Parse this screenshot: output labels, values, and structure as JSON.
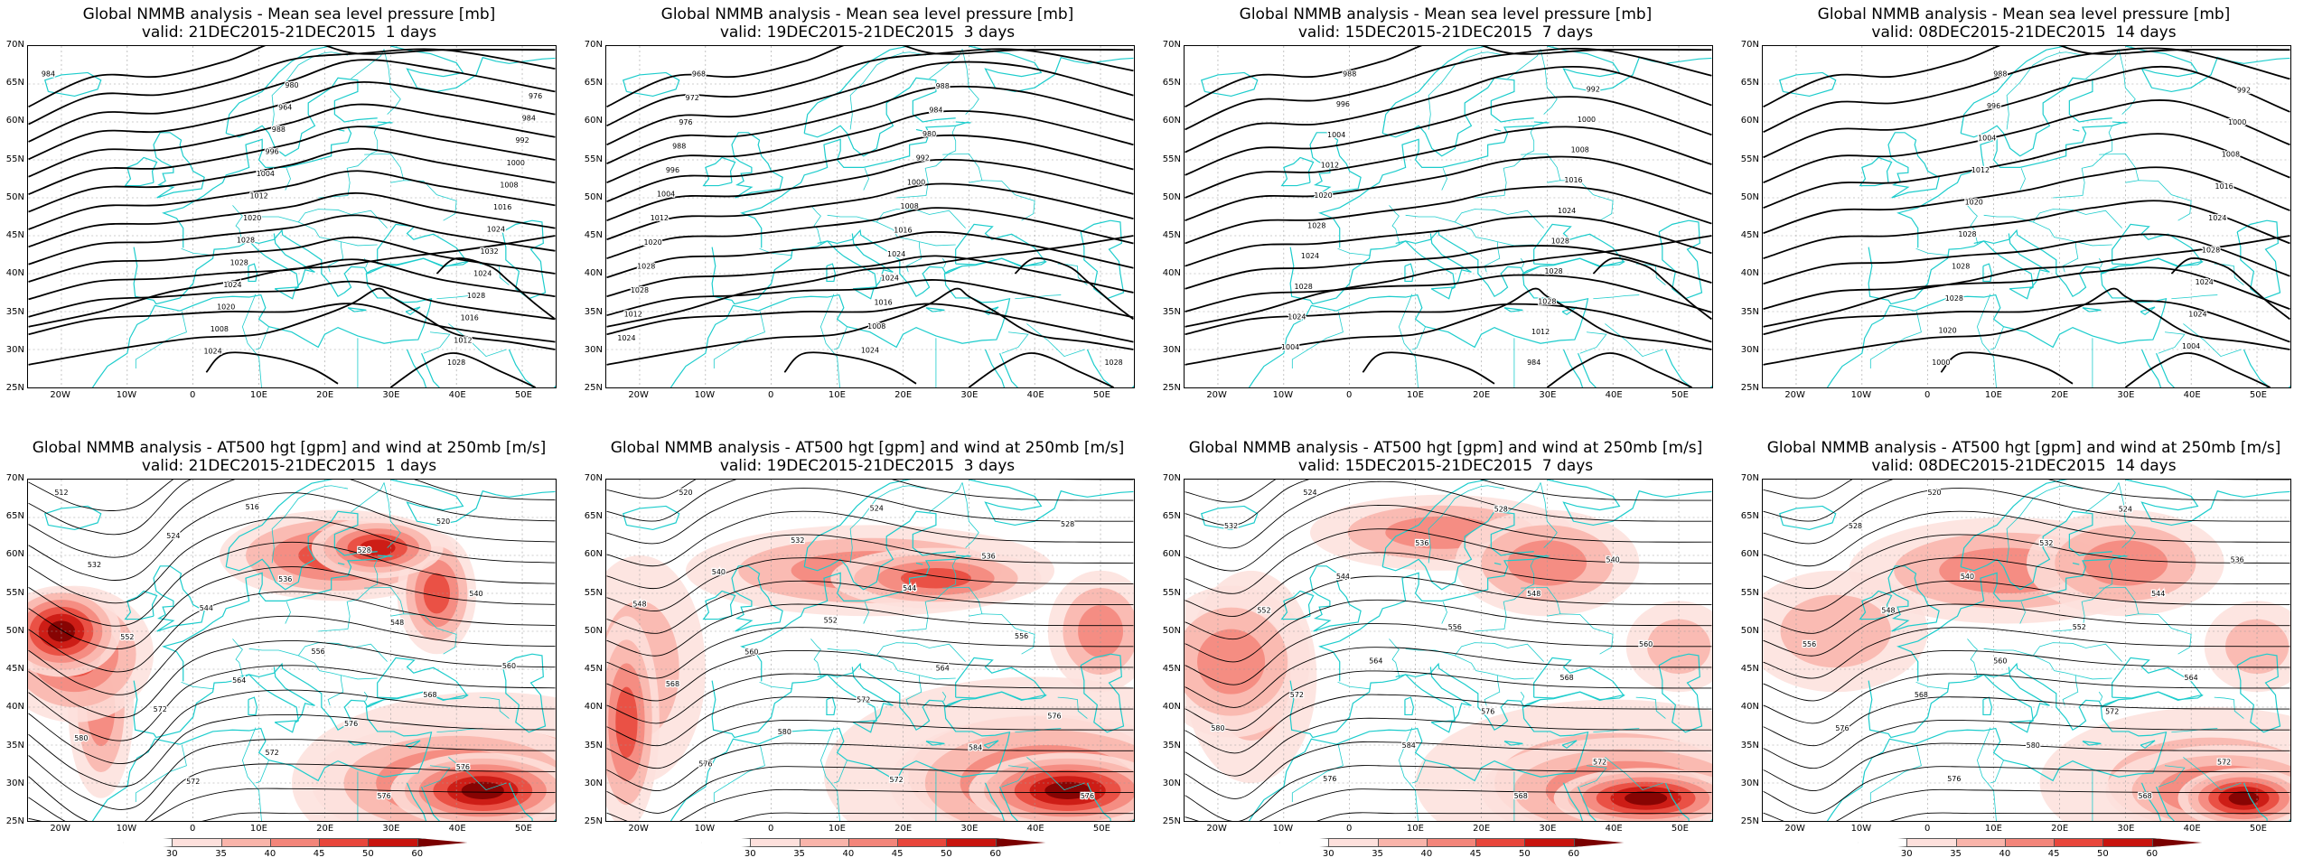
{
  "panels": [
    {
      "row": 0,
      "col": 0,
      "title1": "Global NMMB analysis - Mean sea level pressure [mb]",
      "title2": "valid: 21DEC2015-21DEC2015  1 days",
      "field": "mslp",
      "labels": [
        "984",
        "980",
        "976",
        "964",
        "984",
        "988",
        "992",
        "996",
        "1000",
        "1004",
        "1008",
        "1012",
        "1016",
        "1020",
        "1024",
        "1028",
        "1032",
        "1028",
        "1024",
        "1024",
        "1028",
        "1020",
        "1016",
        "1008",
        "1012",
        "1024",
        "1028"
      ]
    },
    {
      "row": 0,
      "col": 1,
      "title1": "Global NMMB analysis - Mean sea level pressure [mb]",
      "title2": "valid: 19DEC2015-21DEC2015  3 days",
      "field": "mslp",
      "labels": [
        "968",
        "988",
        "972",
        "984",
        "976",
        "980",
        "988",
        "992",
        "996",
        "1000",
        "1004",
        "1008",
        "1012",
        "1016",
        "1020",
        "1024",
        "1028",
        "1024",
        "1028",
        "1016",
        "1012",
        "1008",
        "1024",
        "1024",
        "1028"
      ]
    },
    {
      "row": 0,
      "col": 2,
      "title1": "Global NMMB analysis - Mean sea level pressure [mb]",
      "title2": "valid: 15DEC2015-21DEC2015  7 days",
      "field": "mslp",
      "labels": [
        "988",
        "992",
        "996",
        "1000",
        "1004",
        "1008",
        "1012",
        "1016",
        "1020",
        "1024",
        "1028",
        "1028",
        "1024",
        "1028",
        "1028",
        "1028",
        "1024",
        "1012",
        "1004",
        "984"
      ]
    },
    {
      "row": 0,
      "col": 3,
      "title1": "Global NMMB analysis - Mean sea level pressure [mb]",
      "title2": "valid: 08DEC2015-21DEC2015  14 days",
      "field": "mslp",
      "labels": [
        "988",
        "992",
        "996",
        "1000",
        "1004",
        "1008",
        "1012",
        "1016",
        "1020",
        "1024",
        "1028",
        "1028",
        "1028",
        "1024",
        "1028",
        "1024",
        "1020",
        "1004",
        "1000"
      ]
    },
    {
      "row": 1,
      "col": 0,
      "title1": "Global NMMB analysis - AT500 hgt [gpm] and wind at 250mb [m/s]",
      "title2": "valid: 21DEC2015-21DEC2015  1 days",
      "field": "z500",
      "labels": [
        "512",
        "516",
        "520",
        "524",
        "528",
        "532",
        "536",
        "540",
        "544",
        "548",
        "552",
        "556",
        "560",
        "564",
        "568",
        "572",
        "576",
        "580",
        "572",
        "576",
        "572",
        "576"
      ]
    },
    {
      "row": 1,
      "col": 1,
      "title1": "Global NMMB analysis - AT500 hgt [gpm] and wind at 250mb [m/s]",
      "title2": "valid: 19DEC2015-21DEC2015  3 days",
      "field": "z500",
      "labels": [
        "520",
        "524",
        "528",
        "532",
        "536",
        "540",
        "544",
        "548",
        "552",
        "556",
        "560",
        "564",
        "568",
        "572",
        "576",
        "580",
        "584",
        "576",
        "572",
        "576"
      ]
    },
    {
      "row": 1,
      "col": 2,
      "title1": "Global NMMB analysis - AT500 hgt [gpm] and wind at 250mb [m/s]",
      "title2": "valid: 15DEC2015-21DEC2015  7 days",
      "field": "z500",
      "labels": [
        "524",
        "528",
        "532",
        "536",
        "540",
        "544",
        "548",
        "552",
        "556",
        "560",
        "564",
        "568",
        "572",
        "576",
        "580",
        "584",
        "572",
        "576",
        "568"
      ]
    },
    {
      "row": 1,
      "col": 3,
      "title1": "Global NMMB analysis - AT500 hgt [gpm] and wind at 250mb [m/s]",
      "title2": "valid: 08DEC2015-21DEC2015  14 days",
      "field": "z500",
      "labels": [
        "520",
        "524",
        "528",
        "532",
        "536",
        "540",
        "544",
        "548",
        "552",
        "556",
        "560",
        "564",
        "568",
        "572",
        "576",
        "580",
        "572",
        "576",
        "568"
      ]
    }
  ],
  "axes": {
    "lat_labels": [
      "70N",
      "65N",
      "60N",
      "55N",
      "50N",
      "45N",
      "40N",
      "35N",
      "30N",
      "25N"
    ],
    "lon_labels": [
      "20W",
      "10W",
      "0",
      "10E",
      "20E",
      "30E",
      "40E",
      "50E"
    ]
  },
  "colorbar": {
    "ticks": [
      "30",
      "35",
      "40",
      "45",
      "50",
      "60"
    ],
    "colors": [
      "#ffffff",
      "#fde0dc",
      "#f9b4aa",
      "#f3857a",
      "#e8463b",
      "#c8140e",
      "#7a0000"
    ]
  },
  "colors": {
    "coast": "#1ccccc",
    "contour": "#000000",
    "grid": "#9a9a9a"
  }
}
